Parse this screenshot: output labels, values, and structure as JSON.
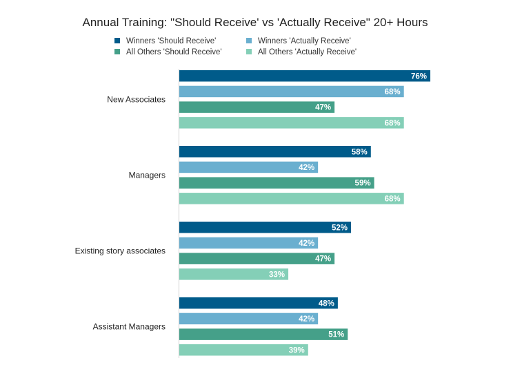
{
  "chart_data": {
    "type": "bar",
    "orientation": "horizontal",
    "title": "Annual Training: \"Should Receive' vs 'Actually Receive\" 20+ Hours",
    "xlabel": "",
    "ylabel": "",
    "xlim": [
      0,
      80
    ],
    "grid": false,
    "legend_position": "top",
    "categories": [
      "New Associates",
      "Managers",
      "Existing story associates",
      "Assistant Managers"
    ],
    "series": [
      {
        "name": "Winners 'Should Receive'",
        "color": "#005b8a",
        "values": [
          76,
          58,
          52,
          48
        ],
        "labels": [
          "76%",
          "58%",
          "52%",
          "48%"
        ]
      },
      {
        "name": "Winners 'Actually Receive'",
        "color": "#6aafcf",
        "values": [
          68,
          42,
          42,
          42
        ],
        "labels": [
          "68%",
          "42%",
          "42%",
          "42%"
        ]
      },
      {
        "name": "All Others 'Should Receive'",
        "color": "#45a089",
        "values": [
          47,
          59,
          47,
          51
        ],
        "labels": [
          "47%",
          "59%",
          "47%",
          "51%"
        ]
      },
      {
        "name": "All Others 'Actually Receive'",
        "color": "#84cfb7",
        "values": [
          68,
          68,
          33,
          39
        ],
        "labels": [
          "68%",
          "68%",
          "33%",
          "39%"
        ]
      }
    ]
  }
}
